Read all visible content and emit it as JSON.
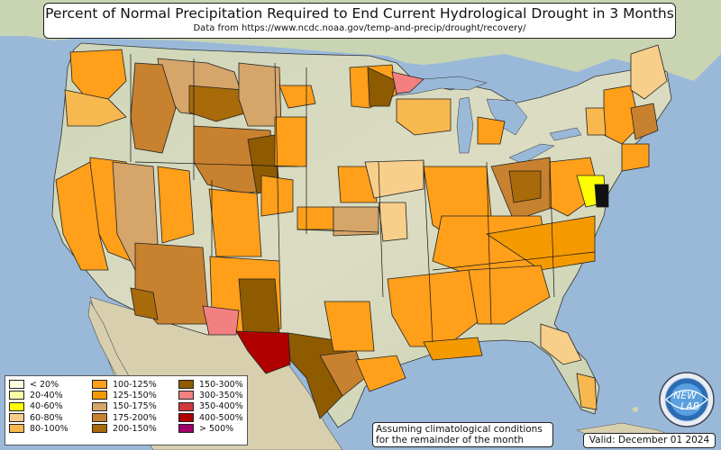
{
  "title": "Percent of Normal Precipitation Required to End Current Hydrological Drought in 3 Months",
  "subtitle": "Data from https://www.ncdc.noaa.gov/temp-and-precip/drought/recovery/",
  "legend": [
    {
      "label": "< 20%",
      "color": "#ffffe0"
    },
    {
      "label": "20-40%",
      "color": "#ffffa8"
    },
    {
      "label": "40-60%",
      "color": "#ffff00"
    },
    {
      "label": "60-80%",
      "color": "#f7ce8a"
    },
    {
      "label": "80-100%",
      "color": "#f8b850"
    },
    {
      "label": "100-125%",
      "color": "#ff9f1a"
    },
    {
      "label": "125-150%",
      "color": "#f49a00"
    },
    {
      "label": "150-175%",
      "color": "#d6a56a"
    },
    {
      "label": "175-200%",
      "color": "#c8812e"
    },
    {
      "label": "200-150%",
      "color": "#a96a0a"
    },
    {
      "label": "150-300%",
      "color": "#8f5b00"
    },
    {
      "label": "300-350%",
      "color": "#f38080"
    },
    {
      "label": "350-400%",
      "color": "#d03a3a"
    },
    {
      "label": "400-500%",
      "color": "#b00000"
    },
    {
      "label": "> 500%",
      "color": "#a0006a"
    }
  ],
  "note": {
    "line1": "Assuming climatological conditions",
    "line2": "for the remainder of the month"
  },
  "valid": "Valid: December 01 2024",
  "logo": {
    "line1": "NEW",
    "line2": "LAB"
  },
  "colors": {
    "ocean": "#9ab9d9",
    "land": "#d8d8c0",
    "border": "#111111"
  }
}
